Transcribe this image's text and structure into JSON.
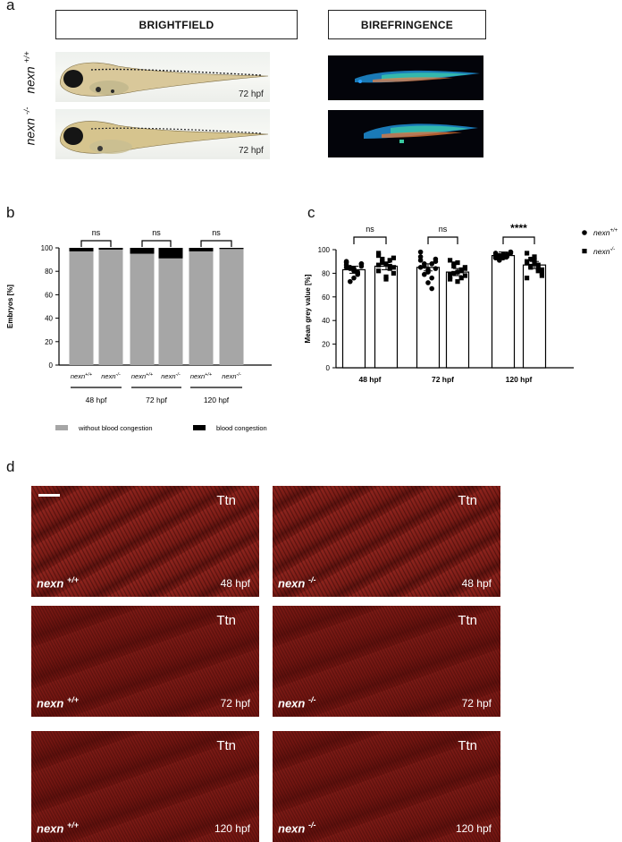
{
  "panel_a": {
    "letter": "a",
    "brightfield_title": "BRIGHTFIELD",
    "birefringence_title": "BIREFRINGENCE",
    "row1_genotype": "nexn",
    "row1_sup": "+/+",
    "row2_genotype": "nexn",
    "row2_sup": "-/-",
    "row1_time": "72 hpf",
    "row2_time": "72 hpf"
  },
  "panel_b": {
    "letter": "b",
    "legend_gray": "without blood congestion",
    "legend_black": "blood congestion"
  },
  "panel_c": {
    "letter": "c",
    "legend_wt_name": "nexn",
    "legend_wt_sup": "+/+",
    "legend_ko_name": "nexn",
    "legend_ko_sup": "-/-"
  },
  "panel_d": {
    "letter": "d",
    "tiles": [
      {
        "stain": "Ttn",
        "genotype": "nexn",
        "sup": "+/+",
        "time": "48 hpf"
      },
      {
        "stain": "Ttn",
        "genotype": "nexn",
        "sup": "-/-",
        "time": "48 hpf"
      },
      {
        "stain": "Ttn",
        "genotype": "nexn",
        "sup": "+/+",
        "time": "72 hpf"
      },
      {
        "stain": "Ttn",
        "genotype": "nexn",
        "sup": "-/-",
        "time": "72 hpf"
      },
      {
        "stain": "Ttn",
        "genotype": "nexn",
        "sup": "+/+",
        "time": "120 hpf"
      },
      {
        "stain": "Ttn",
        "genotype": "nexn",
        "sup": "-/-",
        "time": "120 hpf"
      }
    ]
  },
  "colors": {
    "gray_bar": "#a6a6a6",
    "black_bar": "#000000",
    "stain_red": "#7d1c16"
  },
  "chart_data": [
    {
      "type": "bar",
      "panel": "b",
      "stacked": true,
      "ylabel": "Embryos [%]",
      "ylim": [
        0,
        100
      ],
      "yticks": [
        0,
        20,
        40,
        60,
        80,
        100
      ],
      "categories": [
        "nexn+/+",
        "nexn-/-",
        "nexn+/+",
        "nexn-/-",
        "nexn+/+",
        "nexn-/-"
      ],
      "category_labels": [
        {
          "name": "nexn",
          "sup": "+/+"
        },
        {
          "name": "nexn",
          "sup": "-/-"
        },
        {
          "name": "nexn",
          "sup": "+/+"
        },
        {
          "name": "nexn",
          "sup": "-/-"
        },
        {
          "name": "nexn",
          "sup": "+/+"
        },
        {
          "name": "nexn",
          "sup": "-/-"
        }
      ],
      "groups": [
        "48 hpf",
        "72 hpf",
        "120 hpf"
      ],
      "series": [
        {
          "name": "without blood congestion",
          "values": [
            97,
            98.5,
            95,
            91,
            97,
            99
          ]
        },
        {
          "name": "blood congestion",
          "values": [
            3,
            1.5,
            5,
            9,
            3,
            1
          ]
        }
      ],
      "significance": [
        "ns",
        "ns",
        "ns"
      ]
    },
    {
      "type": "bar",
      "panel": "c",
      "ylabel": "Mean grey value [%]",
      "ylim": [
        0,
        100
      ],
      "yticks": [
        0,
        20,
        40,
        60,
        80,
        100
      ],
      "categories": [
        "48 hpf",
        "72 hpf",
        "120 hpf"
      ],
      "series": [
        {
          "name": "nexn+/+",
          "marker": "circle",
          "values": [
            83,
            85,
            95
          ],
          "points": [
            [
              87,
              85,
              82,
              79,
              88,
              90,
              84,
              76,
              81,
              86,
              89,
              73,
              84,
              80,
              88,
              85
            ],
            [
              94,
              88,
              83,
              76,
              92,
              98,
              86,
              81,
              67,
              90,
              85,
              79,
              72,
              88,
              84,
              91
            ],
            [
              97,
              95,
              93,
              96,
              98,
              94,
              92,
              96,
              95,
              97,
              93,
              91,
              96,
              94,
              98,
              95
            ]
          ]
        },
        {
          "name": "nexn-/-",
          "marker": "square",
          "values": [
            86,
            81,
            87
          ],
          "points": [
            [
              97,
              92,
              88,
              84,
              80,
              95,
              90,
              77,
              86,
              93,
              82,
              89,
              75,
              91,
              85,
              87
            ],
            [
              91,
              86,
              81,
              76,
              84,
              79,
              88,
              73,
              82,
              85,
              77,
              80,
              89,
              83,
              78,
              75
            ],
            [
              97,
              92,
              88,
              84,
              80,
              90,
              86,
              94,
              82,
              78,
              89,
              85,
              91,
              87,
              83,
              76
            ]
          ]
        }
      ],
      "significance": [
        "ns",
        "ns",
        "****"
      ]
    }
  ]
}
